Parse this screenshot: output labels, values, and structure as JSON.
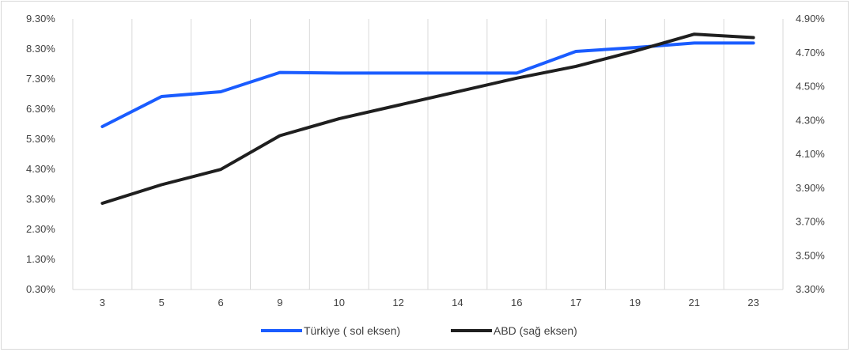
{
  "chart_data": {
    "type": "line",
    "categories": [
      "3",
      "5",
      "6",
      "9",
      "10",
      "12",
      "14",
      "16",
      "17",
      "19",
      "21",
      "23"
    ],
    "series": [
      {
        "name": "Türkiye ( sol eksen)",
        "axis": "left",
        "color": "#1a5cff",
        "values": [
          5.72,
          6.72,
          6.88,
          7.52,
          7.5,
          7.5,
          7.5,
          7.5,
          8.22,
          8.35,
          8.5,
          8.5
        ]
      },
      {
        "name": "ABD (sağ eksen)",
        "axis": "right",
        "color": "#1f1f1f",
        "values": [
          3.81,
          3.92,
          4.01,
          4.21,
          4.31,
          4.39,
          4.47,
          4.55,
          4.62,
          4.71,
          4.81,
          4.79
        ]
      }
    ],
    "y_left": {
      "min": 0.3,
      "max": 9.3,
      "step": 1.0,
      "ticks": [
        "0.30%",
        "1.30%",
        "2.30%",
        "3.30%",
        "4.30%",
        "5.30%",
        "6.30%",
        "7.30%",
        "8.30%",
        "9.30%"
      ]
    },
    "y_right": {
      "min": 3.3,
      "max": 4.9,
      "step": 0.2,
      "ticks": [
        "3.30%",
        "3.50%",
        "3.70%",
        "3.90%",
        "4.10%",
        "4.30%",
        "4.50%",
        "4.70%",
        "4.90%"
      ]
    },
    "grid": "vertical",
    "legend_position": "bottom",
    "colors": {
      "grid": "#d9d9d9",
      "axis_text": "#404040"
    }
  }
}
